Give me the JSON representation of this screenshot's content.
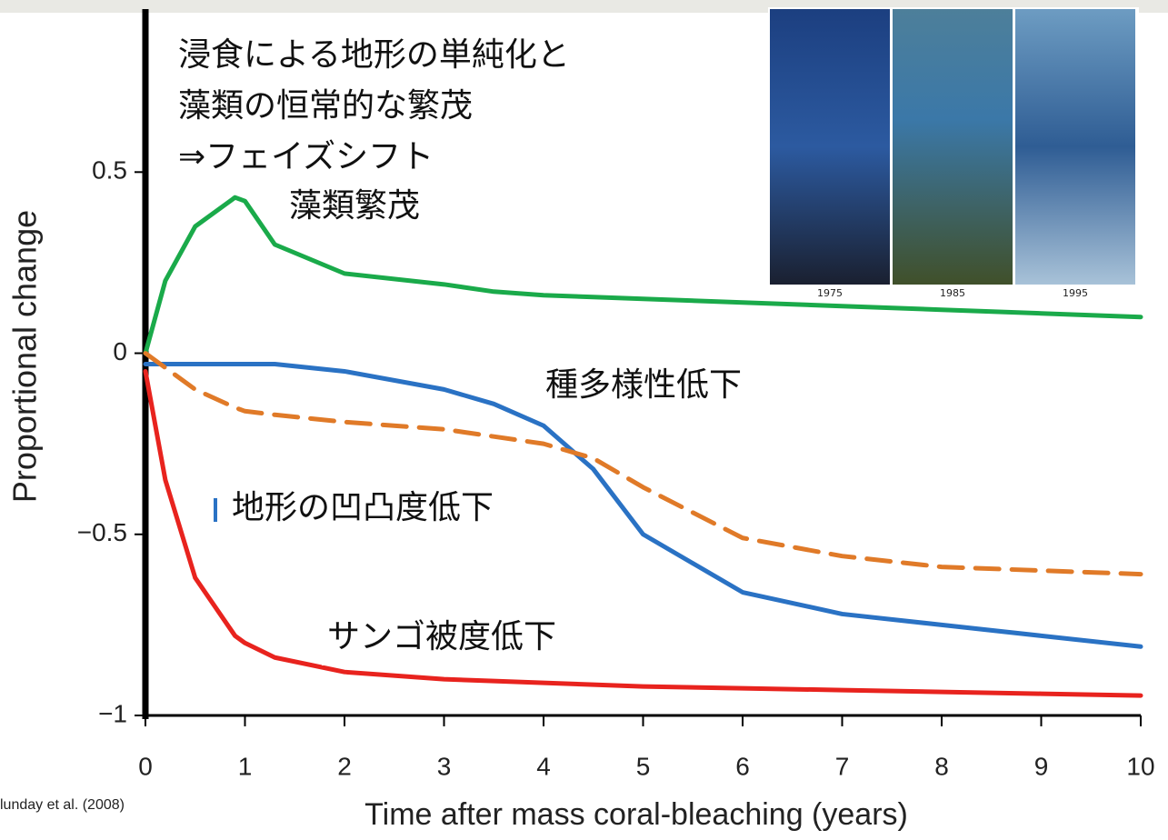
{
  "chart_data": {
    "type": "line",
    "annotations": [
      "浸食による地形の単純化と",
      "藻類の恒常的な繁茂",
      "⇒フェイズシフト"
    ],
    "xlabel": "Time after mass coral-bleaching (years)",
    "ylabel": "Proportional change",
    "source": "lunday et al. (2008)",
    "photo_years": [
      "1975",
      "1985",
      "1995"
    ],
    "x": [
      0,
      0.2,
      0.5,
      0.9,
      1,
      1.3,
      2,
      3,
      3.5,
      4,
      4.5,
      5,
      6,
      7,
      8,
      9,
      10
    ],
    "series": [
      {
        "name": "藻類繁茂",
        "color": "#1aaa4a",
        "values": [
          0,
          0.2,
          0.35,
          0.43,
          0.42,
          0.3,
          0.22,
          0.19,
          0.17,
          0.16,
          0.155,
          0.15,
          0.14,
          0.13,
          0.12,
          0.11,
          0.1
        ]
      },
      {
        "name": "地形の凹凸度低下",
        "color": "#2a72c4",
        "values": [
          -0.03,
          -0.03,
          -0.03,
          -0.03,
          -0.03,
          -0.03,
          -0.05,
          -0.1,
          -0.14,
          -0.2,
          -0.32,
          -0.5,
          -0.66,
          -0.72,
          -0.75,
          -0.78,
          -0.81
        ]
      },
      {
        "name": "種多様性低下",
        "color": "#e07a28",
        "dashed": true,
        "values": [
          0,
          -0.04,
          -0.1,
          -0.15,
          -0.16,
          -0.17,
          -0.19,
          -0.21,
          -0.23,
          -0.25,
          -0.29,
          -0.37,
          -0.51,
          -0.56,
          -0.59,
          -0.6,
          -0.61
        ]
      },
      {
        "name": "サンゴ被度低下",
        "color": "#e8231e",
        "values": [
          -0.05,
          -0.35,
          -0.62,
          -0.78,
          -0.8,
          -0.84,
          -0.88,
          -0.9,
          -0.905,
          -0.91,
          -0.915,
          -0.92,
          -0.925,
          -0.93,
          -0.935,
          -0.94,
          -0.945
        ]
      }
    ],
    "xlim": [
      0,
      10
    ],
    "xticks": [
      0,
      1,
      2,
      3,
      4,
      5,
      6,
      7,
      8,
      9,
      10
    ],
    "ylim": [
      -1,
      0.95
    ],
    "yticks": [
      0.5,
      0,
      {
        "value": -0.5,
        "label": "−0.5"
      },
      {
        "value": -1,
        "label": "−1"
      }
    ]
  }
}
